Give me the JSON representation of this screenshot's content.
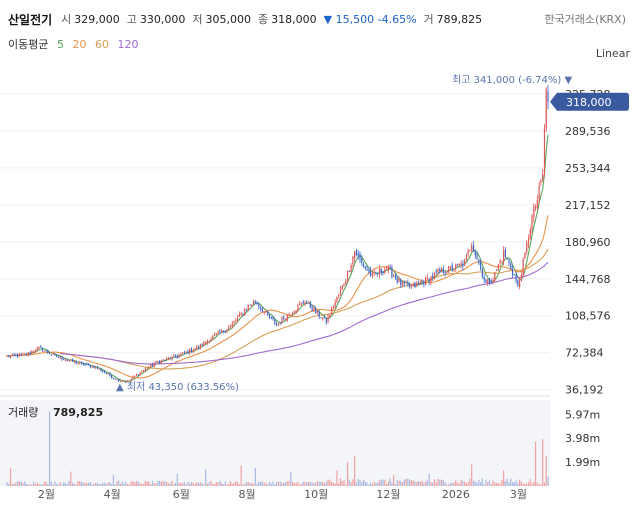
{
  "header": {
    "name": "산일전기",
    "open_label": "시",
    "open": "329,000",
    "high_label": "고",
    "high": "330,000",
    "low_label": "저",
    "low": "305,000",
    "close_label": "종",
    "close": "318,000",
    "change": "▼ 15,500 -4.65%",
    "volume_label": "거",
    "volume": "789,825",
    "exchange": "한국거래소(KRX)"
  },
  "ma_legend": {
    "title": "이동평균",
    "periods": [
      {
        "label": "5",
        "color": "#5aa55a"
      },
      {
        "label": "20",
        "color": "#e8934a"
      },
      {
        "label": "60",
        "color": "#d4a055"
      },
      {
        "label": "120",
        "color": "#a06bd0"
      }
    ]
  },
  "scale_mode": "Linear",
  "colors": {
    "up": "#e05555",
    "down": "#3c64c8",
    "last_price_bg": "#3a5aa0",
    "annotation": "#5a74b0"
  },
  "chart_data": {
    "type": "candlestick",
    "x_ticks": [
      "2월",
      "4월",
      "6월",
      "8월",
      "10월",
      "12월",
      "2026",
      "3월"
    ],
    "y_ticks": [
      36192,
      72384,
      108576,
      144768,
      180960,
      217152,
      253344,
      289536,
      325728
    ],
    "y_tick_labels": [
      "36,192",
      "72,384",
      "108,576",
      "144,768",
      "180,960",
      "217,152",
      "253,344",
      "289,536",
      "325,728"
    ],
    "ylim": [
      30000,
      355000
    ],
    "last_price": 318000,
    "last_price_label": "318,000",
    "max_annotation": "최고 341,000 (-6.74%) ▼",
    "min_annotation": "▲ 최저 43,350 (633.56%)",
    "anchors": [
      [
        0,
        69000
      ],
      [
        10,
        70000
      ],
      [
        18,
        77000
      ],
      [
        26,
        70000
      ],
      [
        38,
        63000
      ],
      [
        50,
        58000
      ],
      [
        62,
        46000
      ],
      [
        68,
        44000
      ],
      [
        74,
        52000
      ],
      [
        84,
        63000
      ],
      [
        96,
        69000
      ],
      [
        108,
        78000
      ],
      [
        116,
        88000
      ],
      [
        126,
        98000
      ],
      [
        136,
        118000
      ],
      [
        140,
        123000
      ],
      [
        146,
        110000
      ],
      [
        152,
        100000
      ],
      [
        160,
        112000
      ],
      [
        168,
        123000
      ],
      [
        174,
        112000
      ],
      [
        180,
        103000
      ],
      [
        184,
        118000
      ],
      [
        188,
        133000
      ],
      [
        192,
        150000
      ],
      [
        196,
        172000
      ],
      [
        200,
        160000
      ],
      [
        206,
        147000
      ],
      [
        214,
        156000
      ],
      [
        222,
        140000
      ],
      [
        228,
        136000
      ],
      [
        236,
        143000
      ],
      [
        244,
        152000
      ],
      [
        252,
        155000
      ],
      [
        258,
        160000
      ],
      [
        262,
        180000
      ],
      [
        266,
        160000
      ],
      [
        270,
        140000
      ],
      [
        274,
        145000
      ],
      [
        280,
        170000
      ],
      [
        286,
        148000
      ],
      [
        288,
        136000
      ],
      [
        292,
        168000
      ],
      [
        296,
        205000
      ],
      [
        299,
        222000
      ],
      [
        302,
        248000
      ],
      [
        304,
        330000
      ],
      [
        305,
        318000
      ]
    ],
    "ma": [
      {
        "name": "5",
        "color": "#5aa55a",
        "window": 5
      },
      {
        "name": "20",
        "color": "#e8934a",
        "window": 20
      },
      {
        "name": "60",
        "color": "#d4a055",
        "window": 60
      },
      {
        "name": "120",
        "color": "#a06bd0",
        "window": 120
      }
    ],
    "volume": {
      "title": "거래량",
      "value": "789,825",
      "y_ticks": [
        1990000,
        3980000,
        5970000
      ],
      "y_tick_labels": [
        "1.99m",
        "3.98m",
        "5.97m"
      ],
      "ylim": [
        0,
        7000000
      ],
      "spikes": [
        [
          2,
          1500000
        ],
        [
          24,
          6200000
        ],
        [
          36,
          1200000
        ],
        [
          60,
          900000
        ],
        [
          96,
          1000000
        ],
        [
          112,
          1400000
        ],
        [
          132,
          1700000
        ],
        [
          140,
          1500000
        ],
        [
          160,
          1200000
        ],
        [
          186,
          1300000
        ],
        [
          192,
          2000000
        ],
        [
          196,
          2500000
        ],
        [
          218,
          900000
        ],
        [
          238,
          1000000
        ],
        [
          262,
          1800000
        ],
        [
          280,
          1300000
        ],
        [
          298,
          3700000
        ],
        [
          302,
          3900000
        ],
        [
          304,
          2500000
        ],
        [
          305,
          789825
        ]
      ]
    }
  }
}
